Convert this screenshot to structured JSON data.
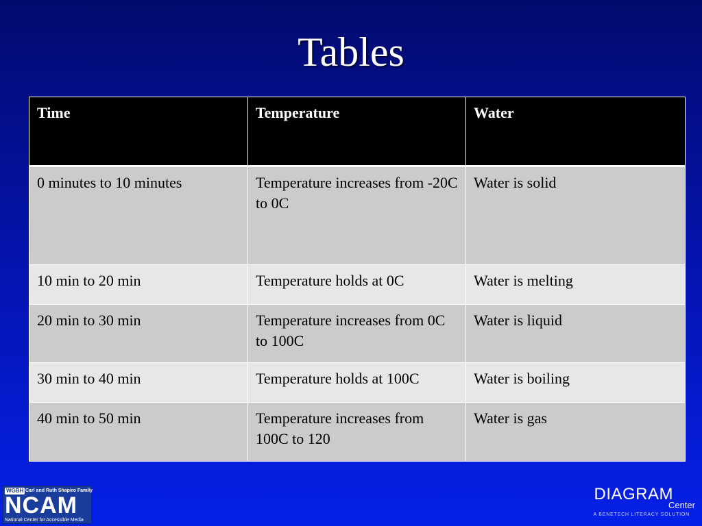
{
  "slide": {
    "title": "Tables"
  },
  "table": {
    "headers": [
      "Time",
      "Temperature",
      "Water"
    ],
    "rows": [
      [
        "0 minutes to 10 minutes",
        "Temperature increases from -20C to 0C",
        "Water is solid"
      ],
      [
        "10 min to 20 min",
        "Temperature holds at 0C",
        "Water is melting"
      ],
      [
        "20 min to 30 min",
        "Temperature increases from 0C to 100C",
        "Water is liquid"
      ],
      [
        "30 min to 40 min",
        "Temperature holds at 100C",
        "Water is boiling"
      ],
      [
        "40 min to 50 min",
        "Temperature increases from 100C to 120",
        "Water is gas"
      ]
    ]
  },
  "logos": {
    "ncam": {
      "badge": "WGBH",
      "family": "Carl and Ruth Shapiro Family",
      "name": "NCAM",
      "subtitle": "National Center for Accessible Media"
    },
    "diagram": {
      "name": "DIAGRAM",
      "center": "Center",
      "tagline": "A BENETECH LITERACY SOLUTION"
    }
  },
  "colors": {
    "background_top": "#030a6e",
    "background_bottom": "#0520e8",
    "header_fill": "#000000",
    "row_dark": "#cbcbcb",
    "row_light": "#e7e7e7"
  }
}
